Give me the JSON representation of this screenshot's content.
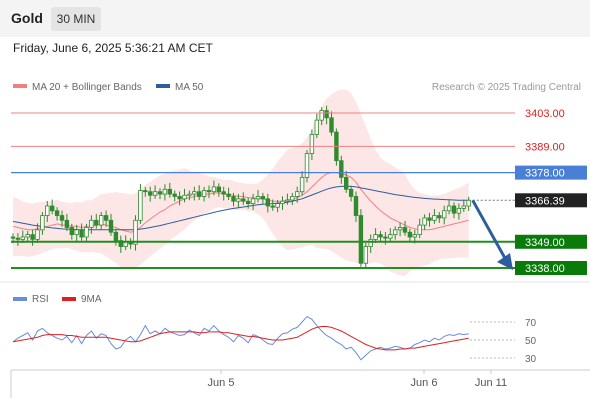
{
  "header": {
    "symbol": "Gold",
    "timeframe": "30 MIN",
    "datetime": "Friday, June 6, 2025 5:36:21 AM CET"
  },
  "legend": {
    "ma20_label": "MA 20 + Bollinger Bands",
    "ma50_label": "MA 50",
    "copyright": "Research © 2025 Trading Central",
    "rsi_label": "RSI",
    "rsi_ma_label": "9MA"
  },
  "colors": {
    "ma20": "#f08080",
    "ma50": "#2e5c9e",
    "bands_fill": "#fde2e2",
    "resistance": "#f08080",
    "pivot": "#4a7fd6",
    "support": "#1f8f1f",
    "support_badge": "#0a7a0a",
    "current_badge": "#222222",
    "arrow": "#2e5c9e",
    "candle": "#2e8b2e",
    "rsi": "#6b8cd8",
    "rsi_ma": "#e02020",
    "level_text": "#e02020"
  },
  "chart_data": {
    "type": "candlestick",
    "levels": [
      {
        "role": "resistance",
        "value": 3403.0,
        "label": "3403.00"
      },
      {
        "role": "resistance",
        "value": 3389.0,
        "label": "3389.00"
      },
      {
        "role": "pivot",
        "value": 3378.0,
        "label": "3378.00"
      },
      {
        "role": "support",
        "value": 3349.0,
        "label": "3349.00"
      },
      {
        "role": "support",
        "value": 3338.0,
        "label": "3338.00"
      }
    ],
    "current_price": {
      "value": 3366.39,
      "label": "3366.39"
    },
    "forecast_target": 3338.0,
    "x_ticks": [
      "Jun 5",
      "Jun 6",
      "Jun 11"
    ],
    "ylim": [
      3334,
      3412
    ],
    "closes": [
      3350.5,
      3350.0,
      3351.0,
      3352.0,
      3350.0,
      3354.0,
      3360.0,
      3364.0,
      3362.0,
      3360.0,
      3358.0,
      3355.0,
      3352.0,
      3354.0,
      3351.0,
      3355.0,
      3358.0,
      3356.0,
      3360.0,
      3358.0,
      3353.0,
      3349.5,
      3347.0,
      3349.0,
      3348.0,
      3358.0,
      3370.5,
      3370.0,
      3368.5,
      3370.0,
      3369.0,
      3371.0,
      3369.0,
      3368.0,
      3367.0,
      3368.5,
      3369.0,
      3370.0,
      3368.0,
      3370.5,
      3370.0,
      3372.0,
      3370.0,
      3369.0,
      3368.0,
      3366.0,
      3367.0,
      3366.0,
      3365.0,
      3367.0,
      3368.0,
      3367.0,
      3364.0,
      3363.5,
      3365.0,
      3366.0,
      3366.5,
      3368.0,
      3370.0,
      3376.0,
      3386.0,
      3394.0,
      3400.0,
      3404.0,
      3401.0,
      3395.0,
      3383.0,
      3376.0,
      3371.0,
      3368.0,
      3360.0,
      3340.0,
      3347.0,
      3350.0,
      3352.0,
      3351.0,
      3350.5,
      3352.0,
      3354.0,
      3355.0,
      3353.0,
      3351.0,
      3352.0,
      3356.0,
      3359.0,
      3358.0,
      3360.0,
      3359.0,
      3362.0,
      3364.0,
      3361.0,
      3363.0,
      3364.0,
      3366.4
    ],
    "ma20": [
      3355.5,
      3355.0,
      3354.5,
      3354.0,
      3354.0,
      3354.5,
      3355.0,
      3355.5,
      3356.0,
      3356.5,
      3356.0,
      3356.0,
      3355.5,
      3355.5,
      3355.0,
      3355.5,
      3355.5,
      3356.0,
      3356.5,
      3356.0,
      3355.5,
      3355.0,
      3354.0,
      3353.5,
      3353.0,
      3353.5,
      3355.0,
      3357.0,
      3358.5,
      3360.0,
      3361.5,
      3362.5,
      3364.0,
      3365.0,
      3366.0,
      3367.0,
      3367.5,
      3368.0,
      3368.5,
      3369.0,
      3369.0,
      3369.5,
      3369.5,
      3369.0,
      3369.0,
      3368.5,
      3368.0,
      3368.0,
      3367.5,
      3367.5,
      3367.0,
      3367.0,
      3366.5,
      3366.0,
      3366.0,
      3366.0,
      3366.5,
      3367.0,
      3367.5,
      3368.5,
      3370.0,
      3372.0,
      3374.0,
      3376.0,
      3377.5,
      3378.0,
      3378.0,
      3377.5,
      3377.0,
      3376.0,
      3374.0,
      3371.0,
      3368.5,
      3366.0,
      3364.0,
      3362.0,
      3360.5,
      3359.0,
      3358.0,
      3357.0,
      3356.0,
      3355.0,
      3354.5,
      3354.0,
      3354.0,
      3354.0,
      3354.5,
      3355.0,
      3355.5,
      3356.0,
      3356.5,
      3357.0,
      3357.5,
      3358.0
    ],
    "ma50": [
      3357.5,
      3357.2,
      3356.8,
      3356.4,
      3356.0,
      3355.7,
      3355.4,
      3355.1,
      3354.8,
      3354.6,
      3354.4,
      3354.3,
      3354.2,
      3354.1,
      3354.0,
      3354.0,
      3354.0,
      3354.0,
      3354.0,
      3354.0,
      3354.0,
      3354.0,
      3354.0,
      3354.0,
      3354.0,
      3354.1,
      3354.3,
      3354.6,
      3355.0,
      3355.4,
      3355.8,
      3356.3,
      3356.8,
      3357.3,
      3357.8,
      3358.3,
      3358.8,
      3359.3,
      3359.8,
      3360.3,
      3360.8,
      3361.3,
      3361.8,
      3362.2,
      3362.6,
      3363.0,
      3363.3,
      3363.6,
      3363.9,
      3364.2,
      3364.5,
      3364.7,
      3364.9,
      3365.0,
      3365.2,
      3365.4,
      3365.6,
      3366.0,
      3366.5,
      3367.0,
      3367.8,
      3368.6,
      3369.4,
      3370.2,
      3371.0,
      3371.6,
      3372.0,
      3372.2,
      3372.3,
      3372.2,
      3372.0,
      3371.6,
      3371.2,
      3370.8,
      3370.4,
      3370.0,
      3369.6,
      3369.2,
      3368.8,
      3368.5,
      3368.2,
      3367.9,
      3367.6,
      3367.4,
      3367.2,
      3367.0,
      3366.9,
      3366.8,
      3366.7,
      3366.6,
      3366.5,
      3366.4,
      3366.4,
      3366.4
    ],
    "rsi": {
      "yticks": [
        70,
        50,
        30
      ],
      "ylim": [
        20,
        80
      ],
      "values": [
        48,
        52,
        55,
        58,
        50,
        60,
        63,
        58,
        55,
        52,
        50,
        54,
        47,
        55,
        46,
        55,
        60,
        52,
        57,
        55,
        46,
        40,
        42,
        50,
        54,
        48,
        56,
        66,
        57,
        60,
        57,
        63,
        59,
        57,
        55,
        56,
        61,
        58,
        55,
        63,
        60,
        66,
        60,
        56,
        53,
        48,
        55,
        52,
        47,
        56,
        54,
        50,
        46,
        45,
        52,
        57,
        58,
        62,
        64,
        70,
        76,
        73,
        66,
        60,
        55,
        52,
        48,
        45,
        40,
        42,
        36,
        28,
        33,
        38,
        40,
        42,
        40,
        41,
        43,
        42,
        40,
        41,
        45,
        47,
        50,
        48,
        52,
        50,
        54,
        56,
        55,
        57,
        56,
        57
      ],
      "ma9": [
        48,
        49,
        50,
        51,
        52,
        53,
        55,
        56,
        56,
        56,
        56,
        55,
        55,
        54,
        53,
        53,
        53,
        53,
        53,
        53,
        52,
        51,
        50,
        49,
        48,
        48,
        49,
        51,
        53,
        55,
        57,
        58,
        59,
        59,
        59,
        59,
        59,
        59,
        58,
        58,
        59,
        59,
        59,
        58,
        58,
        57,
        56,
        55,
        54,
        54,
        53,
        52,
        51,
        50,
        50,
        50,
        51,
        52,
        53,
        56,
        59,
        62,
        64,
        65,
        65,
        64,
        62,
        60,
        57,
        54,
        51,
        48,
        45,
        43,
        41,
        40,
        39,
        39,
        39,
        40,
        40,
        41,
        41,
        42,
        43,
        44,
        45,
        46,
        47,
        48,
        49,
        50,
        51,
        52
      ]
    }
  }
}
